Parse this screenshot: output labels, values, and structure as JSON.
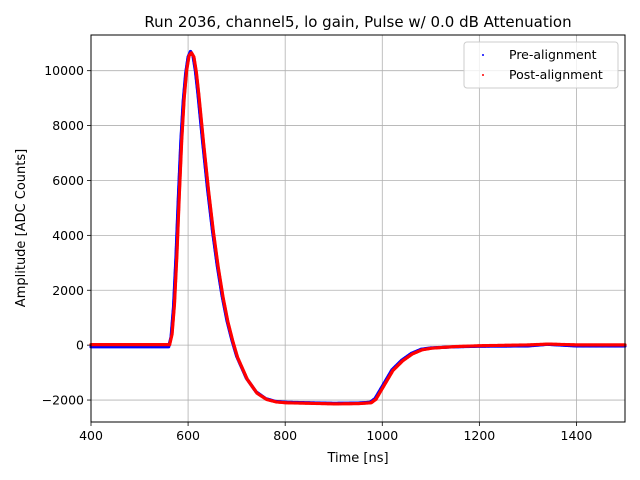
{
  "chart_data": {
    "type": "scatter",
    "title": "Run 2036, channel5, lo gain, Pulse w/ 0.0 dB Attenuation",
    "xlabel": "Time [ns]",
    "ylabel": "Amplitude [ADC Counts]",
    "xlim": [
      400,
      1500
    ],
    "ylim": [
      -2800,
      11300
    ],
    "xticks": [
      400,
      600,
      800,
      1000,
      1200,
      1400
    ],
    "yticks": [
      -2000,
      0,
      2000,
      4000,
      6000,
      8000,
      10000
    ],
    "ytick_labels": [
      "−2000",
      "0",
      "2000",
      "4000",
      "6000",
      "8000",
      "10000"
    ],
    "grid": true,
    "legend_position": "top-right",
    "series": [
      {
        "name": "Pre-alignment",
        "color": "#0000ff",
        "x": [
          400,
          500,
          560,
          565,
          570,
          575,
          580,
          585,
          590,
          595,
          600,
          605,
          610,
          615,
          620,
          625,
          630,
          640,
          650,
          660,
          670,
          680,
          690,
          700,
          720,
          740,
          760,
          780,
          800,
          850,
          900,
          950,
          975,
          985,
          990,
          1000,
          1010,
          1020,
          1040,
          1060,
          1080,
          1100,
          1150,
          1200,
          1300,
          1340,
          1400,
          1500
        ],
        "y": [
          -60,
          -60,
          -60,
          300,
          1400,
          3200,
          5400,
          7400,
          8900,
          9900,
          10500,
          10700,
          10550,
          10000,
          9200,
          8300,
          7400,
          5700,
          4200,
          2900,
          1800,
          900,
          200,
          -400,
          -1200,
          -1700,
          -1950,
          -2050,
          -2080,
          -2100,
          -2120,
          -2110,
          -2080,
          -1950,
          -1800,
          -1500,
          -1200,
          -900,
          -550,
          -300,
          -150,
          -100,
          -60,
          -40,
          -30,
          30,
          -30,
          -30
        ]
      },
      {
        "name": "Post-alignment",
        "color": "#ff0000",
        "x": [
          400,
          500,
          562,
          567,
          572,
          577,
          582,
          587,
          592,
          597,
          602,
          607,
          612,
          617,
          622,
          627,
          632,
          642,
          652,
          662,
          672,
          682,
          692,
          702,
          722,
          742,
          762,
          782,
          802,
          852,
          902,
          952,
          977,
          987,
          992,
          1002,
          1012,
          1022,
          1042,
          1062,
          1082,
          1102,
          1152,
          1202,
          1302,
          1342,
          1402,
          1500
        ],
        "y": [
          20,
          20,
          20,
          400,
          1500,
          3300,
          5500,
          7500,
          9000,
          10000,
          10550,
          10650,
          10500,
          9950,
          9150,
          8250,
          7350,
          5650,
          4150,
          2850,
          1750,
          850,
          150,
          -450,
          -1250,
          -1750,
          -1980,
          -2070,
          -2100,
          -2120,
          -2140,
          -2130,
          -2100,
          -1970,
          -1820,
          -1520,
          -1220,
          -920,
          -570,
          -320,
          -170,
          -110,
          -50,
          -20,
          10,
          40,
          10,
          10
        ]
      }
    ]
  }
}
